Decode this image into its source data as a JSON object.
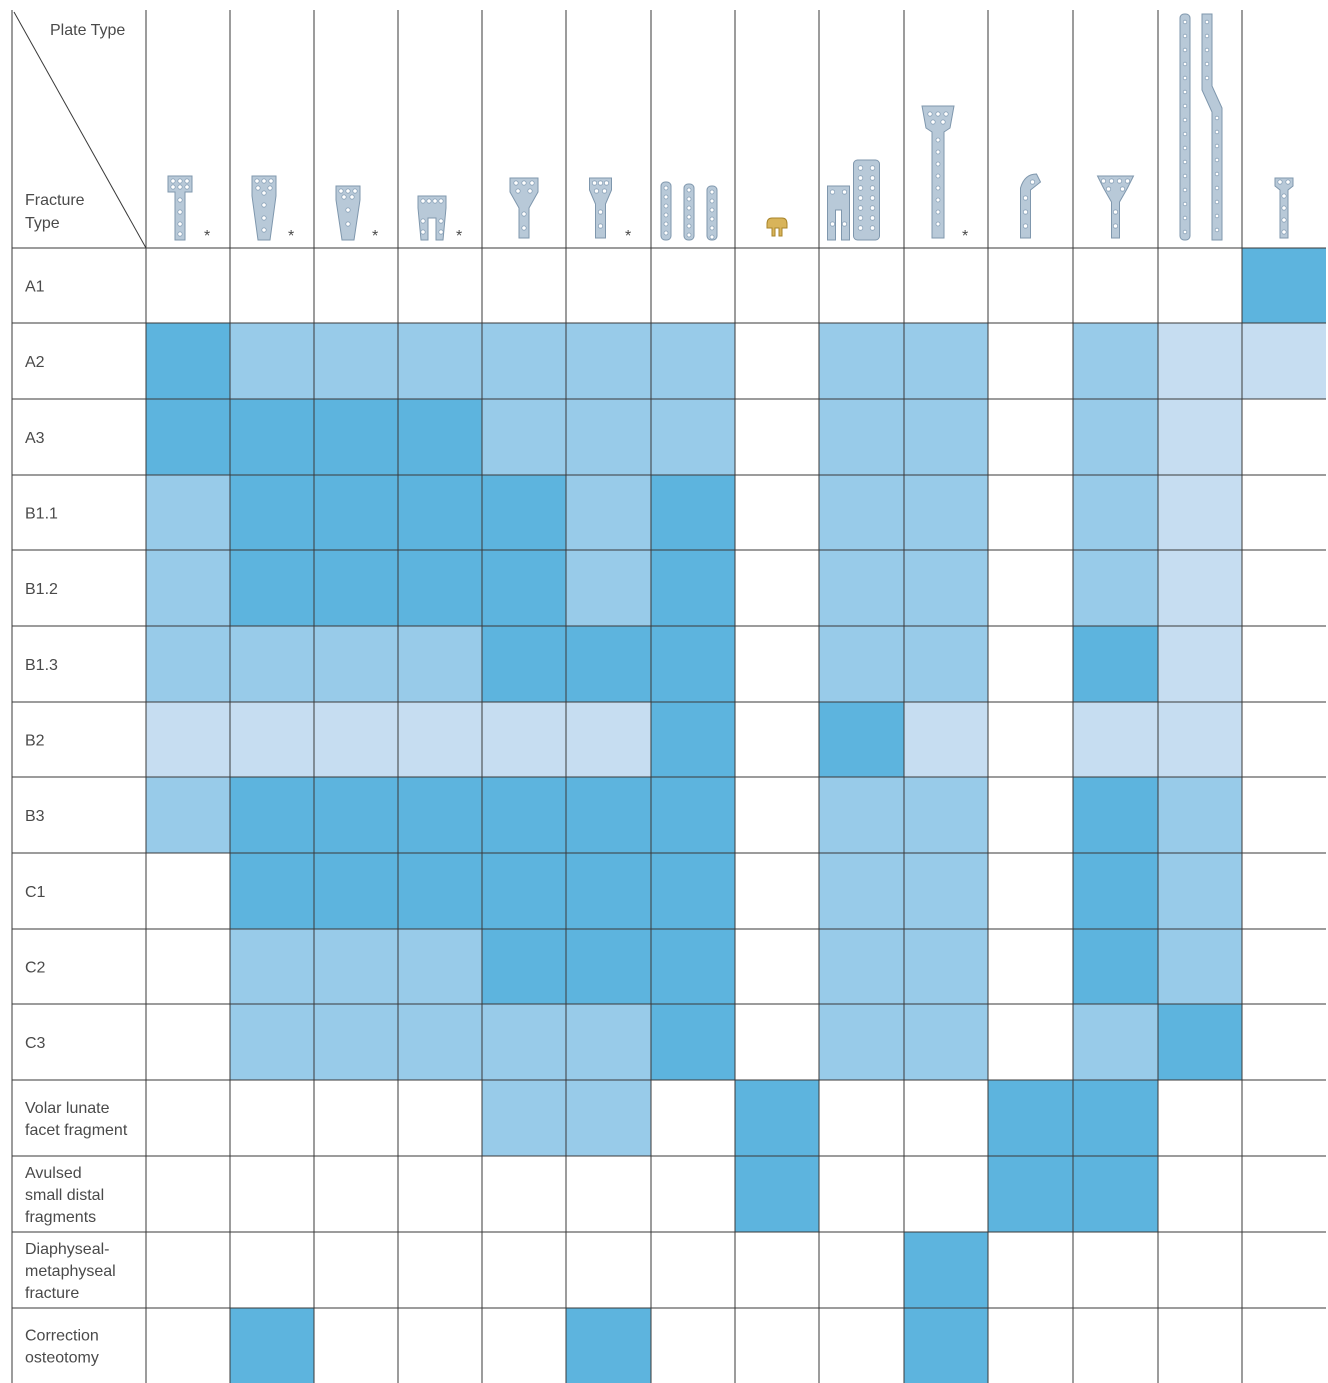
{
  "header": {
    "plate_type_label": "Plate Type",
    "fracture_type_label": [
      "Fracture",
      "Type"
    ],
    "asterisk": "*"
  },
  "legend_colors": {
    "dark": "#5db4de",
    "medium": "#98cbe9",
    "light": "#c6ddf1",
    "none": "#ffffff"
  },
  "chart_data": {
    "type": "heatmap",
    "x_label": "Plate Type",
    "y_label": "Fracture Type",
    "columns": [
      {
        "icon": "t-plate-narrow-icon",
        "asterisk": true
      },
      {
        "icon": "t-plate-wide-icon",
        "asterisk": true
      },
      {
        "icon": "t-plate-wide-short-icon",
        "asterisk": true
      },
      {
        "icon": "dual-column-plate-icon",
        "asterisk": true
      },
      {
        "icon": "y-plate-icon",
        "asterisk": false
      },
      {
        "icon": "y-plate-small-icon",
        "asterisk": true
      },
      {
        "icon": "straight-strut-plates-icon",
        "asterisk": false
      },
      {
        "icon": "hook-plate-gold-icon",
        "asterisk": false
      },
      {
        "icon": "h-and-tower-plates-icon",
        "asterisk": false
      },
      {
        "icon": "long-t-plate-icon",
        "asterisk": true
      },
      {
        "icon": "curved-rim-plate-icon",
        "asterisk": false
      },
      {
        "icon": "fan-y-plate-icon",
        "asterisk": false
      },
      {
        "icon": "long-bridging-plates-icon",
        "asterisk": false
      },
      {
        "icon": "small-chain-plate-icon",
        "asterisk": false
      }
    ],
    "rows": [
      {
        "label": [
          "A1"
        ],
        "levels": [
          0,
          0,
          0,
          0,
          0,
          0,
          0,
          0,
          0,
          0,
          0,
          0,
          0,
          3
        ]
      },
      {
        "label": [
          "A2"
        ],
        "levels": [
          3,
          2,
          2,
          2,
          2,
          2,
          2,
          0,
          2,
          2,
          0,
          2,
          1,
          1
        ]
      },
      {
        "label": [
          "A3"
        ],
        "levels": [
          3,
          3,
          3,
          3,
          2,
          2,
          2,
          0,
          2,
          2,
          0,
          2,
          1,
          0
        ]
      },
      {
        "label": [
          "B1.1"
        ],
        "levels": [
          2,
          3,
          3,
          3,
          3,
          2,
          3,
          0,
          2,
          2,
          0,
          2,
          1,
          0
        ]
      },
      {
        "label": [
          "B1.2"
        ],
        "levels": [
          2,
          3,
          3,
          3,
          3,
          2,
          3,
          0,
          2,
          2,
          0,
          2,
          1,
          0
        ]
      },
      {
        "label": [
          "B1.3"
        ],
        "levels": [
          2,
          2,
          2,
          2,
          3,
          3,
          3,
          0,
          2,
          2,
          0,
          3,
          1,
          0
        ]
      },
      {
        "label": [
          "B2"
        ],
        "levels": [
          1,
          1,
          1,
          1,
          1,
          1,
          3,
          0,
          3,
          1,
          0,
          1,
          1,
          0
        ]
      },
      {
        "label": [
          "B3"
        ],
        "levels": [
          2,
          3,
          3,
          3,
          3,
          3,
          3,
          0,
          2,
          2,
          0,
          3,
          2,
          0
        ]
      },
      {
        "label": [
          "C1"
        ],
        "levels": [
          0,
          3,
          3,
          3,
          3,
          3,
          3,
          0,
          2,
          2,
          0,
          3,
          2,
          0
        ]
      },
      {
        "label": [
          "C2"
        ],
        "levels": [
          0,
          2,
          2,
          2,
          3,
          3,
          3,
          0,
          2,
          2,
          0,
          3,
          2,
          0
        ]
      },
      {
        "label": [
          "C3"
        ],
        "levels": [
          0,
          2,
          2,
          2,
          2,
          2,
          3,
          0,
          2,
          2,
          0,
          2,
          3,
          0
        ]
      },
      {
        "label": [
          "Volar lunate",
          "facet fragment"
        ],
        "levels": [
          0,
          0,
          0,
          0,
          2,
          2,
          0,
          3,
          0,
          0,
          3,
          3,
          0,
          0
        ]
      },
      {
        "label": [
          "Avulsed",
          "small distal",
          "fragments"
        ],
        "levels": [
          0,
          0,
          0,
          0,
          0,
          0,
          0,
          3,
          0,
          0,
          3,
          3,
          0,
          0
        ]
      },
      {
        "label": [
          "Diaphyseal-",
          "metaphyseal",
          "fracture"
        ],
        "levels": [
          0,
          0,
          0,
          0,
          0,
          0,
          0,
          0,
          0,
          3,
          0,
          0,
          0,
          0
        ]
      },
      {
        "label": [
          "Correction",
          "osteotomy"
        ],
        "levels": [
          0,
          3,
          0,
          0,
          0,
          3,
          0,
          0,
          0,
          3,
          0,
          0,
          0,
          0
        ]
      }
    ]
  }
}
